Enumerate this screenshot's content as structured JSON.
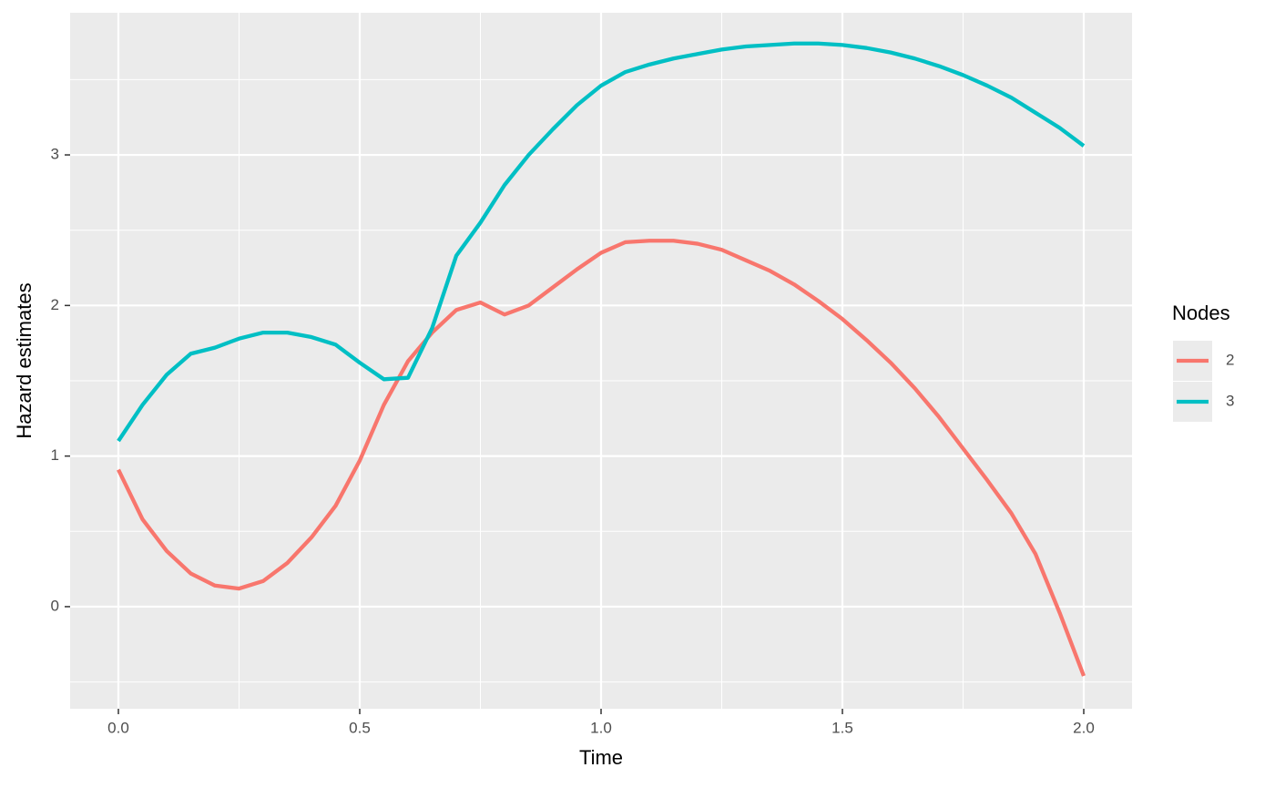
{
  "chart_data": {
    "type": "line",
    "xlabel": "Time",
    "ylabel": "Hazard estimates",
    "legend_title": "Nodes",
    "legend": "right",
    "x": [
      0,
      0.05,
      0.1,
      0.15,
      0.2,
      0.25,
      0.3,
      0.35,
      0.4,
      0.45,
      0.5,
      0.55,
      0.6,
      0.65,
      0.7,
      0.75,
      0.8,
      0.85,
      0.9,
      0.95,
      1.0,
      1.05,
      1.1,
      1.15,
      1.2,
      1.25,
      1.3,
      1.35,
      1.4,
      1.45,
      1.5,
      1.55,
      1.6,
      1.65,
      1.7,
      1.75,
      1.8,
      1.85,
      1.9,
      1.95,
      2.0
    ],
    "series": [
      {
        "name": "2",
        "color": "#F8766D",
        "values": [
          0.91,
          0.58,
          0.37,
          0.22,
          0.14,
          0.12,
          0.17,
          0.29,
          0.46,
          0.67,
          0.97,
          1.34,
          1.63,
          1.82,
          1.97,
          2.02,
          1.94,
          2.0,
          2.12,
          2.24,
          2.35,
          2.42,
          2.43,
          2.43,
          2.41,
          2.37,
          2.3,
          2.23,
          2.14,
          2.03,
          1.91,
          1.77,
          1.62,
          1.45,
          1.26,
          1.05,
          0.84,
          0.62,
          0.35,
          -0.04,
          -0.46
        ]
      },
      {
        "name": "3",
        "color": "#00BFC4",
        "values": [
          1.1,
          1.34,
          1.54,
          1.68,
          1.72,
          1.78,
          1.82,
          1.82,
          1.79,
          1.74,
          1.62,
          1.51,
          1.52,
          1.85,
          2.33,
          2.55,
          2.8,
          3.0,
          3.17,
          3.33,
          3.46,
          3.55,
          3.6,
          3.64,
          3.67,
          3.7,
          3.72,
          3.73,
          3.74,
          3.74,
          3.73,
          3.71,
          3.68,
          3.64,
          3.59,
          3.53,
          3.46,
          3.38,
          3.28,
          3.18,
          3.06
        ]
      }
    ],
    "xlim": [
      -0.1,
      2.1
    ],
    "xticks": [
      {
        "value": 0,
        "label": "0.0"
      },
      0.5,
      {
        "value": 1,
        "label": "1.0"
      },
      1.5,
      {
        "value": 2,
        "label": "2.0"
      }
    ],
    "xminor": [
      0.25,
      0.75,
      1.25,
      1.75
    ],
    "ylim": [
      -0.678,
      3.944
    ],
    "yticks": [
      0,
      1,
      2,
      3
    ],
    "yminor": [
      -0.5,
      0.5,
      1.5,
      2.5,
      3.5
    ],
    "grid": true
  }
}
